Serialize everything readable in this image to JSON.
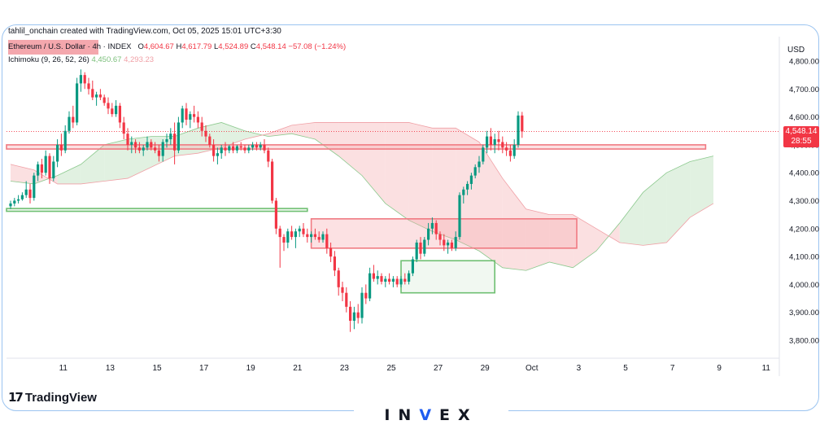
{
  "header": {
    "attribution": "tahlil_onchain created with TradingView.com, Oct 05, 2025 15:01 UTC+3:30"
  },
  "legend": {
    "symbol": "Ethereum / U.S. Dollar · 4h · INDEX",
    "o_label": "O",
    "o_value": "4,604.67",
    "h_label": "H",
    "h_value": "4,617.79",
    "l_label": "L",
    "l_value": "4,524.89",
    "c_label": "C",
    "c_value": "4,548.14",
    "change": "−57.08 (−1.24%)",
    "indicator": "Ichimoku (9, 26, 52, 26)",
    "ind_value_1": "4,450.67",
    "ind_value_2": "4,293.23"
  },
  "price_axis": {
    "currency": "USD",
    "last_price": "4,548.14",
    "countdown": "28:55"
  },
  "branding": {
    "logo_mark": "17",
    "logo_text": "TradingView",
    "watermark_prefix": "IN",
    "watermark_v": "V",
    "watermark_suffix": "EX"
  },
  "colors": {
    "up": "#089981",
    "down": "#f23645",
    "cloud_green": "#c8e6c9",
    "cloud_red": "#f8c6c9",
    "zone_red": "#f7a9ae",
    "zone_green": "#8cc98e",
    "frame": "#9bc4f0"
  },
  "chart_data": {
    "type": "candlestick",
    "symbol": "Ethereum / U.S. Dollar",
    "timeframe": "4h",
    "ylim": [
      3750,
      4870
    ],
    "y_ticks": [
      "3,800.00",
      "3,900.00",
      "4,000.00",
      "4,100.00",
      "4,200.00",
      "4,300.00",
      "4,400.00",
      "4,500.00",
      "4,600.00",
      "4,700.00",
      "4,800.00"
    ],
    "y_tick_values": [
      3800,
      3900,
      4000,
      4100,
      4200,
      4300,
      4400,
      4500,
      4600,
      4700,
      4800
    ],
    "x_ticks": [
      "11",
      "13",
      "15",
      "17",
      "19",
      "21",
      "23",
      "25",
      "27",
      "29",
      "Oct",
      "3",
      "5",
      "7",
      "9",
      "11"
    ],
    "x_tick_index": [
      6,
      18,
      30,
      42,
      54,
      66,
      78,
      90,
      102,
      114,
      126,
      138,
      150,
      162,
      174,
      186
    ],
    "candles": [
      [
        4280,
        4300,
        4270,
        4290
      ],
      [
        4290,
        4310,
        4280,
        4300
      ],
      [
        4300,
        4320,
        4290,
        4305
      ],
      [
        4305,
        4330,
        4300,
        4320
      ],
      [
        4320,
        4370,
        4310,
        4340
      ],
      [
        4340,
        4360,
        4290,
        4310
      ],
      [
        4310,
        4400,
        4300,
        4390
      ],
      [
        4390,
        4440,
        4370,
        4430
      ],
      [
        4430,
        4450,
        4380,
        4400
      ],
      [
        4400,
        4480,
        4390,
        4460
      ],
      [
        4460,
        4470,
        4360,
        4380
      ],
      [
        4380,
        4460,
        4370,
        4440
      ],
      [
        4440,
        4520,
        4420,
        4500
      ],
      [
        4500,
        4540,
        4460,
        4480
      ],
      [
        4480,
        4570,
        4470,
        4550
      ],
      [
        4550,
        4620,
        4540,
        4600
      ],
      [
        4600,
        4640,
        4560,
        4580
      ],
      [
        4580,
        4740,
        4570,
        4720
      ],
      [
        4720,
        4770,
        4690,
        4750
      ],
      [
        4750,
        4760,
        4700,
        4720
      ],
      [
        4720,
        4740,
        4680,
        4700
      ],
      [
        4700,
        4730,
        4660,
        4670
      ],
      [
        4670,
        4690,
        4640,
        4680
      ],
      [
        4680,
        4700,
        4660,
        4670
      ],
      [
        4670,
        4680,
        4640,
        4650
      ],
      [
        4650,
        4670,
        4610,
        4630
      ],
      [
        4630,
        4650,
        4600,
        4610
      ],
      [
        4610,
        4660,
        4600,
        4640
      ],
      [
        4640,
        4650,
        4560,
        4580
      ],
      [
        4580,
        4600,
        4520,
        4540
      ],
      [
        4540,
        4560,
        4480,
        4500
      ],
      [
        4500,
        4530,
        4470,
        4510
      ],
      [
        4510,
        4520,
        4470,
        4490
      ],
      [
        4490,
        4510,
        4470,
        4480
      ],
      [
        4480,
        4500,
        4460,
        4490
      ],
      [
        4490,
        4530,
        4480,
        4510
      ],
      [
        4510,
        4520,
        4480,
        4490
      ],
      [
        4490,
        4510,
        4470,
        4480
      ],
      [
        4480,
        4500,
        4440,
        4460
      ],
      [
        4460,
        4520,
        4440,
        4510
      ],
      [
        4510,
        4540,
        4490,
        4520
      ],
      [
        4520,
        4560,
        4500,
        4540
      ],
      [
        4540,
        4580,
        4430,
        4480
      ],
      [
        4480,
        4600,
        4470,
        4580
      ],
      [
        4580,
        4640,
        4560,
        4630
      ],
      [
        4630,
        4650,
        4570,
        4590
      ],
      [
        4590,
        4620,
        4560,
        4610
      ],
      [
        4610,
        4640,
        4580,
        4600
      ],
      [
        4600,
        4620,
        4560,
        4580
      ],
      [
        4580,
        4600,
        4530,
        4550
      ],
      [
        4550,
        4570,
        4510,
        4530
      ],
      [
        4530,
        4540,
        4490,
        4500
      ],
      [
        4500,
        4520,
        4440,
        4460
      ],
      [
        4460,
        4490,
        4430,
        4470
      ],
      [
        4470,
        4500,
        4450,
        4490
      ],
      [
        4490,
        4510,
        4460,
        4480
      ],
      [
        4480,
        4500,
        4470,
        4495
      ],
      [
        4495,
        4510,
        4470,
        4480
      ],
      [
        4480,
        4500,
        4470,
        4495
      ],
      [
        4495,
        4510,
        4480,
        4490
      ],
      [
        4490,
        4500,
        4470,
        4480
      ],
      [
        4480,
        4500,
        4470,
        4490
      ],
      [
        4490,
        4510,
        4480,
        4500
      ],
      [
        4500,
        4510,
        4480,
        4490
      ],
      [
        4490,
        4510,
        4480,
        4500
      ],
      [
        4500,
        4520,
        4470,
        4480
      ],
      [
        4480,
        4490,
        4420,
        4440
      ],
      [
        4440,
        4450,
        4290,
        4300
      ],
      [
        4300,
        4310,
        4180,
        4200
      ],
      [
        4200,
        4210,
        4060,
        4170
      ],
      [
        4170,
        4180,
        4120,
        4150
      ],
      [
        4150,
        4200,
        4130,
        4190
      ],
      [
        4190,
        4210,
        4160,
        4170
      ],
      [
        4170,
        4200,
        4130,
        4190
      ],
      [
        4190,
        4210,
        4170,
        4200
      ],
      [
        4200,
        4220,
        4170,
        4180
      ],
      [
        4180,
        4200,
        4150,
        4170
      ],
      [
        4170,
        4190,
        4150,
        4180
      ],
      [
        4180,
        4200,
        4160,
        4170
      ],
      [
        4170,
        4190,
        4150,
        4160
      ],
      [
        4160,
        4190,
        4150,
        4180
      ],
      [
        4180,
        4200,
        4110,
        4130
      ],
      [
        4130,
        4150,
        4080,
        4100
      ],
      [
        4100,
        4120,
        4030,
        4050
      ],
      [
        4050,
        4060,
        3960,
        3990
      ],
      [
        3990,
        4010,
        3940,
        3970
      ],
      [
        3970,
        3990,
        3900,
        3920
      ],
      [
        3920,
        3940,
        3830,
        3870
      ],
      [
        3870,
        3920,
        3840,
        3900
      ],
      [
        3900,
        3930,
        3860,
        3880
      ],
      [
        3880,
        3990,
        3860,
        3970
      ],
      [
        3970,
        4000,
        3930,
        3950
      ],
      [
        3950,
        4060,
        3940,
        4040
      ],
      [
        4040,
        4070,
        4010,
        4020
      ],
      [
        4020,
        4050,
        4000,
        4030
      ],
      [
        4030,
        4040,
        4000,
        4010
      ],
      [
        4010,
        4030,
        3990,
        4020
      ],
      [
        4020,
        4040,
        4000,
        4010
      ],
      [
        4010,
        4030,
        3990,
        4020
      ],
      [
        4020,
        4030,
        3990,
        4000
      ],
      [
        4000,
        4030,
        3990,
        4020
      ],
      [
        4020,
        4040,
        4000,
        4010
      ],
      [
        4010,
        4050,
        4000,
        4040
      ],
      [
        4040,
        4100,
        4030,
        4090
      ],
      [
        4090,
        4160,
        4080,
        4150
      ],
      [
        4150,
        4170,
        4090,
        4110
      ],
      [
        4110,
        4170,
        4100,
        4160
      ],
      [
        4160,
        4220,
        4140,
        4200
      ],
      [
        4200,
        4240,
        4180,
        4220
      ],
      [
        4220,
        4230,
        4160,
        4180
      ],
      [
        4180,
        4190,
        4140,
        4160
      ],
      [
        4160,
        4180,
        4120,
        4140
      ],
      [
        4140,
        4160,
        4110,
        4150
      ],
      [
        4150,
        4160,
        4120,
        4130
      ],
      [
        4130,
        4190,
        4120,
        4170
      ],
      [
        4170,
        4330,
        4160,
        4320
      ],
      [
        4320,
        4350,
        4290,
        4340
      ],
      [
        4340,
        4370,
        4320,
        4360
      ],
      [
        4360,
        4400,
        4340,
        4390
      ],
      [
        4390,
        4430,
        4380,
        4420
      ],
      [
        4420,
        4460,
        4400,
        4440
      ],
      [
        4440,
        4500,
        4430,
        4490
      ],
      [
        4490,
        4550,
        4470,
        4530
      ],
      [
        4530,
        4560,
        4480,
        4500
      ],
      [
        4500,
        4540,
        4470,
        4520
      ],
      [
        4520,
        4550,
        4480,
        4510
      ],
      [
        4510,
        4530,
        4470,
        4490
      ],
      [
        4490,
        4510,
        4460,
        4480
      ],
      [
        4480,
        4500,
        4440,
        4460
      ],
      [
        4460,
        4520,
        4450,
        4500
      ],
      [
        4500,
        4620,
        4490,
        4605
      ],
      [
        4605,
        4618,
        4525,
        4548
      ]
    ],
    "ichimoku": {
      "span_a": [
        [
          0,
          4370
        ],
        [
          6,
          4360
        ],
        [
          12,
          4390
        ],
        [
          18,
          4430
        ],
        [
          24,
          4500
        ],
        [
          30,
          4520
        ],
        [
          36,
          4530
        ],
        [
          42,
          4530
        ],
        [
          48,
          4560
        ],
        [
          54,
          4580
        ],
        [
          60,
          4550
        ],
        [
          66,
          4530
        ],
        [
          72,
          4540
        ],
        [
          78,
          4520
        ],
        [
          84,
          4460
        ],
        [
          90,
          4390
        ],
        [
          96,
          4290
        ],
        [
          102,
          4230
        ],
        [
          108,
          4190
        ],
        [
          114,
          4160
        ],
        [
          120,
          4120
        ],
        [
          126,
          4060
        ],
        [
          132,
          4050
        ],
        [
          138,
          4080
        ],
        [
          144,
          4060
        ],
        [
          150,
          4120
        ],
        [
          156,
          4220
        ],
        [
          162,
          4330
        ],
        [
          168,
          4400
        ],
        [
          174,
          4440
        ],
        [
          180,
          4460
        ]
      ],
      "span_b": [
        [
          0,
          4430
        ],
        [
          6,
          4410
        ],
        [
          12,
          4360
        ],
        [
          18,
          4360
        ],
        [
          24,
          4370
        ],
        [
          30,
          4380
        ],
        [
          36,
          4420
        ],
        [
          42,
          4460
        ],
        [
          48,
          4470
        ],
        [
          54,
          4490
        ],
        [
          60,
          4520
        ],
        [
          66,
          4540
        ],
        [
          72,
          4570
        ],
        [
          78,
          4580
        ],
        [
          84,
          4580
        ],
        [
          90,
          4580
        ],
        [
          96,
          4580
        ],
        [
          102,
          4580
        ],
        [
          108,
          4560
        ],
        [
          114,
          4560
        ],
        [
          120,
          4510
        ],
        [
          126,
          4380
        ],
        [
          132,
          4270
        ],
        [
          138,
          4250
        ],
        [
          144,
          4250
        ],
        [
          150,
          4200
        ],
        [
          156,
          4150
        ],
        [
          162,
          4140
        ],
        [
          168,
          4150
        ],
        [
          174,
          4240
        ],
        [
          180,
          4290
        ]
      ]
    },
    "zones": [
      {
        "kind": "red",
        "y1": 4485,
        "y2": 4500,
        "x1": 0,
        "x2": 178
      },
      {
        "kind": "green",
        "y1": 4262,
        "y2": 4272,
        "x1": 0,
        "x2": 76
      },
      {
        "kind": "red",
        "y1": 4130,
        "y2": 4235,
        "x1": 77,
        "x2": 145
      },
      {
        "kind": "green",
        "y1": 3970,
        "y2": 4085,
        "x1": 100,
        "x2": 124
      }
    ]
  }
}
